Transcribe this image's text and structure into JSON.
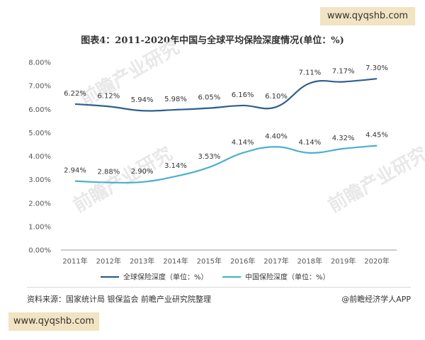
{
  "watermark": {
    "top": "www.qyqshb.com",
    "bottom": "www.qyqshb.com"
  },
  "footer": {
    "source": "资料来源：国家统计局 银保监会 前瞻产业研究院整理",
    "brand": "@前瞻经济学人APP"
  },
  "chart_data": {
    "type": "line",
    "title": "图表4：2011-2020年中国与全球平均保险深度情况(单位：%)",
    "categories": [
      "2011年",
      "2012年",
      "2013年",
      "2014年",
      "2015年",
      "2016年",
      "2017年",
      "2018年",
      "2019年",
      "2020年"
    ],
    "y_ticks": [
      "0.00%",
      "1.00%",
      "2.00%",
      "3.00%",
      "4.00%",
      "5.00%",
      "6.00%",
      "7.00%",
      "8.00%"
    ],
    "ylim": [
      0,
      8
    ],
    "grid": false,
    "legend_position": "bottom",
    "series": [
      {
        "name": "全球保险深度（单位：%）",
        "color": "#2e5f8f",
        "values": [
          6.22,
          6.12,
          5.94,
          5.98,
          6.05,
          6.16,
          6.1,
          7.11,
          7.17,
          7.3
        ],
        "labels": [
          "6.22%",
          "6.12%",
          "5.94%",
          "5.98%",
          "6.05%",
          "6.16%",
          "6.10%",
          "7.11%",
          "7.17%",
          "7.30%"
        ]
      },
      {
        "name": "中国保险深度（单位：%）",
        "color": "#4ab0cf",
        "values": [
          2.94,
          2.88,
          2.9,
          3.14,
          3.53,
          4.14,
          4.4,
          4.14,
          4.32,
          4.45
        ],
        "labels": [
          "2.94%",
          "2.88%",
          "2.90%",
          "3.14%",
          "3.53%",
          "4.14%",
          "4.40%",
          "4.14%",
          "4.32%",
          "4.45%"
        ]
      }
    ]
  }
}
